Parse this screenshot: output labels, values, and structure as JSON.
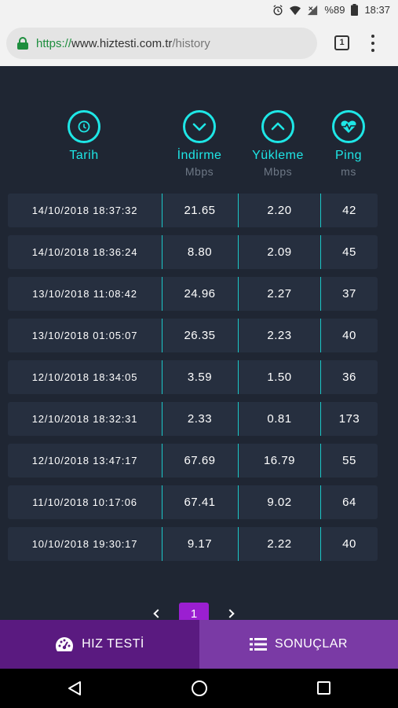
{
  "status_bar": {
    "battery": "%89",
    "time": "18:37"
  },
  "browser": {
    "url_scheme": "https://",
    "url_host": "www.hiztesti.com.tr",
    "url_path": "/history",
    "tab_count": "1"
  },
  "columns": {
    "date": {
      "title": "Tarih",
      "icon": "clock-icon"
    },
    "download": {
      "title": "İndirme",
      "unit": "Mbps",
      "icon": "arrow-down-icon"
    },
    "upload": {
      "title": "Yükleme",
      "unit": "Mbps",
      "icon": "arrow-up-icon"
    },
    "ping": {
      "title": "Ping",
      "unit": "ms",
      "icon": "heartbeat-icon"
    }
  },
  "rows": [
    {
      "date": "14/10/2018 18:37:32",
      "download": "21.65",
      "upload": "2.20",
      "ping": "42"
    },
    {
      "date": "14/10/2018 18:36:24",
      "download": "8.80",
      "upload": "2.09",
      "ping": "45"
    },
    {
      "date": "13/10/2018 11:08:42",
      "download": "24.96",
      "upload": "2.27",
      "ping": "37"
    },
    {
      "date": "13/10/2018 01:05:07",
      "download": "26.35",
      "upload": "2.23",
      "ping": "40"
    },
    {
      "date": "12/10/2018 18:34:05",
      "download": "3.59",
      "upload": "1.50",
      "ping": "36"
    },
    {
      "date": "12/10/2018 18:32:31",
      "download": "2.33",
      "upload": "0.81",
      "ping": "173"
    },
    {
      "date": "12/10/2018 13:47:17",
      "download": "67.69",
      "upload": "16.79",
      "ping": "55"
    },
    {
      "date": "11/10/2018 10:17:06",
      "download": "67.41",
      "upload": "9.02",
      "ping": "64"
    },
    {
      "date": "10/10/2018 19:30:17",
      "download": "9.17",
      "upload": "2.22",
      "ping": "40"
    }
  ],
  "pagination": {
    "current_page": "1"
  },
  "tabs": {
    "speed_test": "HIZ TESTİ",
    "results": "SONUÇLAR"
  },
  "colors": {
    "accent": "#1ee6e6",
    "page_active": "#9b1fd1",
    "tab_active": "#5a1a80",
    "tab_inactive": "#7a3aa5"
  }
}
